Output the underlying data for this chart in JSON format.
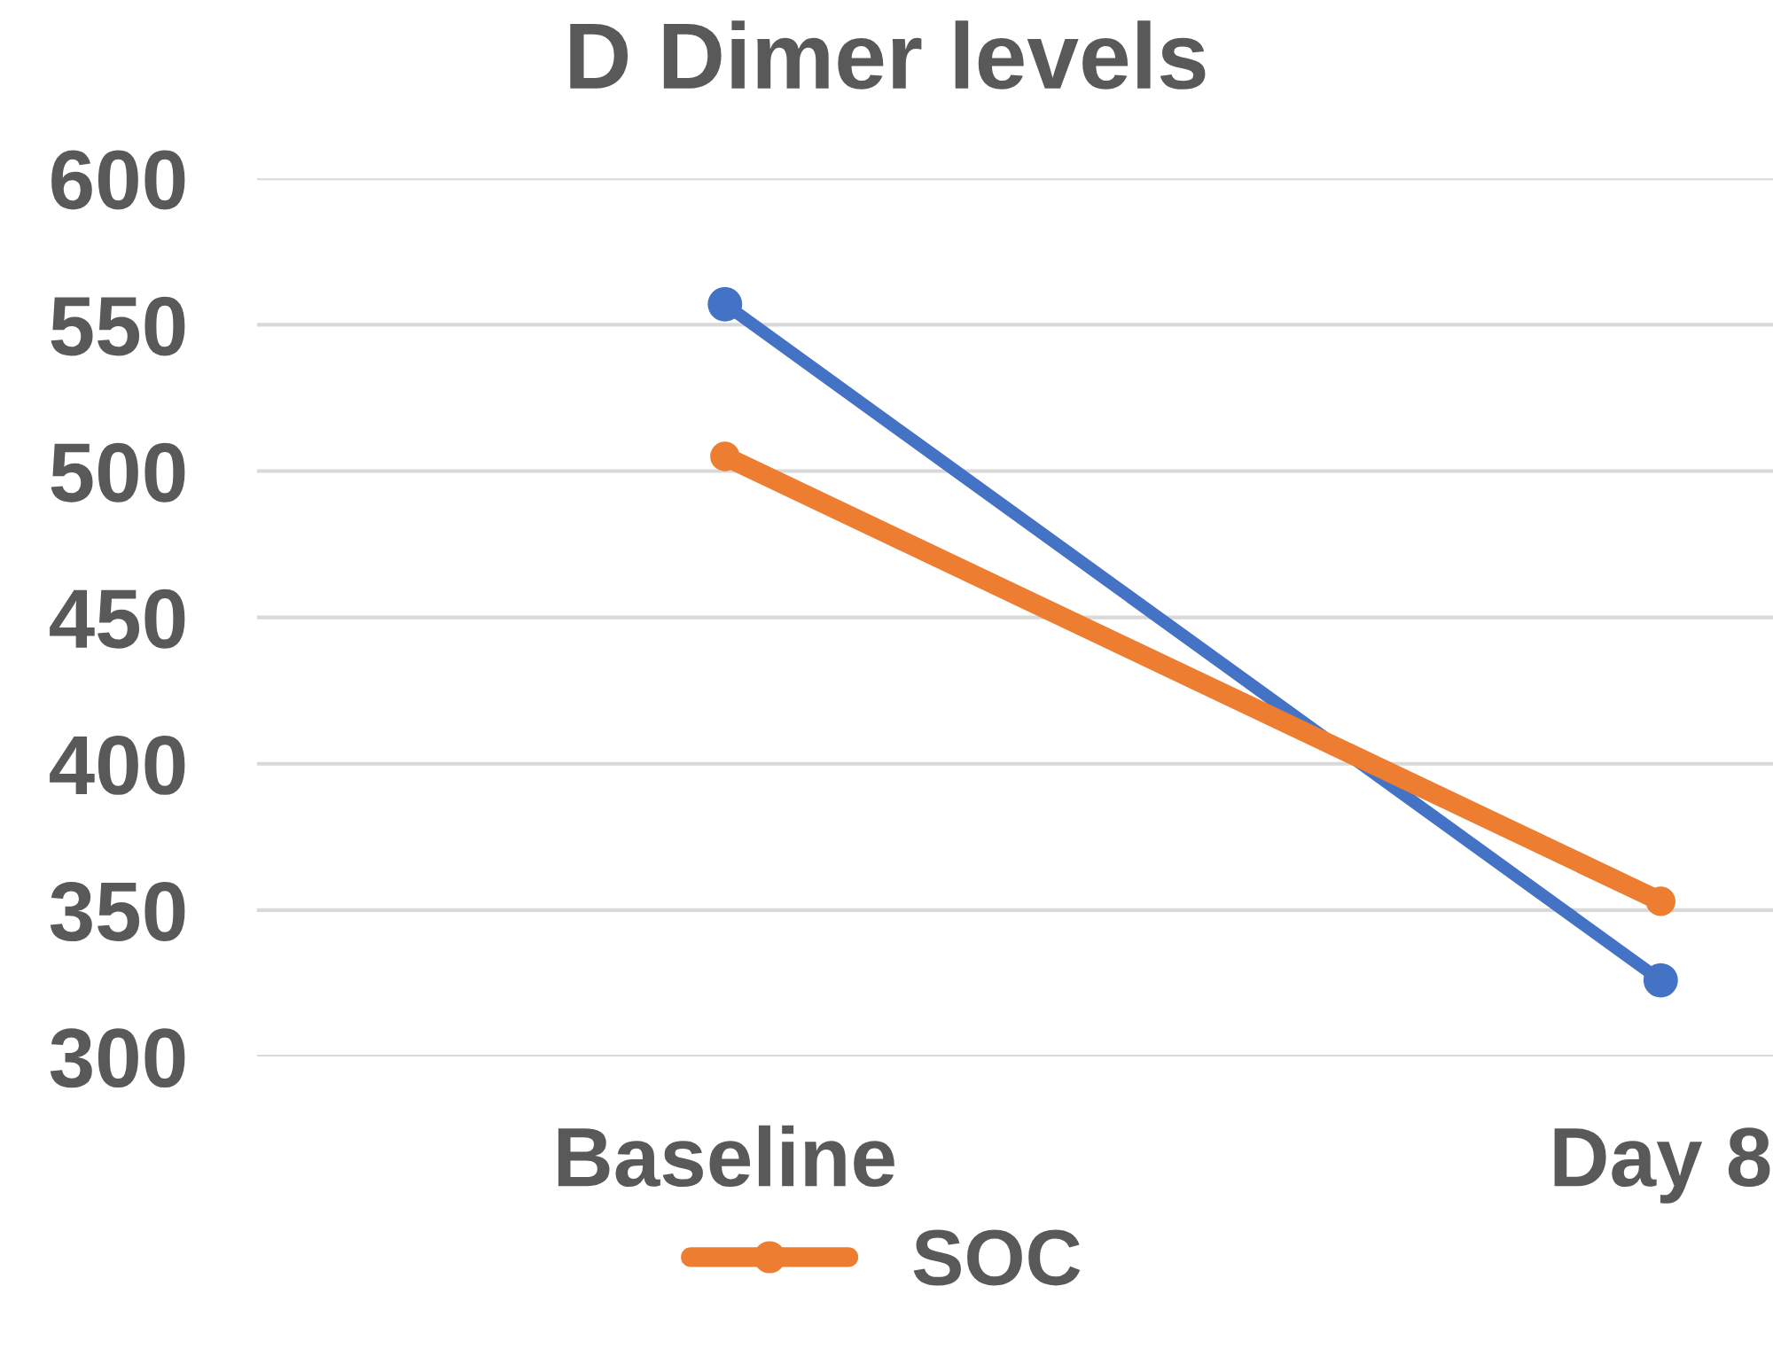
{
  "chart_data": {
    "type": "line",
    "title": "D Dimer levels",
    "categories": [
      "Baseline",
      "Day 8"
    ],
    "series": [
      {
        "color": "#4472c4",
        "values": [
          557,
          326
        ]
      },
      {
        "name": "SOC",
        "color": "#ed7d31",
        "values": [
          505,
          353
        ]
      }
    ],
    "ylim": [
      300,
      600
    ],
    "yticks": [
      300,
      350,
      400,
      450,
      500,
      550,
      600
    ],
    "grid": "y",
    "legend": "bottom",
    "marker": "circle"
  }
}
